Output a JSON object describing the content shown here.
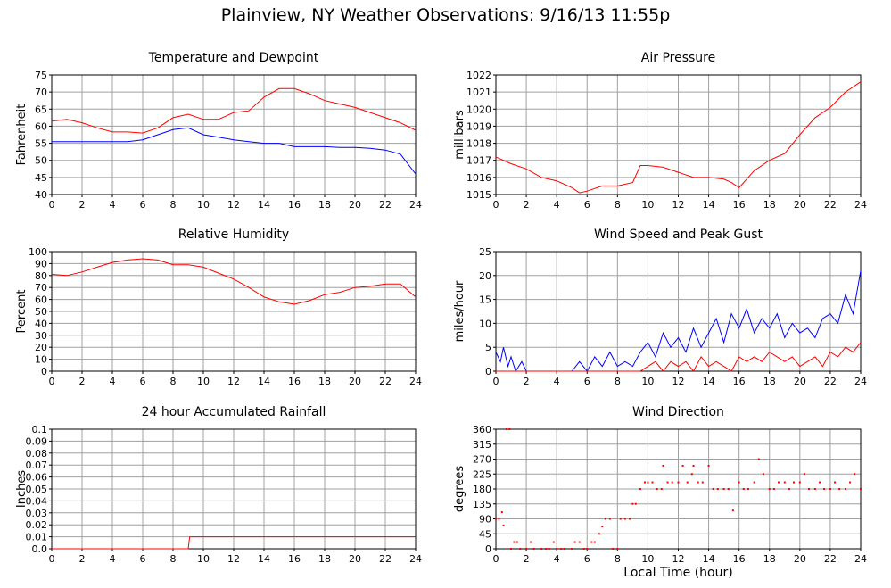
{
  "title": "Plainview, NY Weather Observations: 9/16/13 11:55p",
  "xlabel": "Local Time (hour)",
  "colors": {
    "red": "#ff0000",
    "blue": "#0000ff",
    "grid": "#a0a0a0"
  },
  "chart_data": [
    {
      "type": "line",
      "title": "Temperature and Dewpoint",
      "ylabel": "Fahrenheit",
      "xlim": [
        0,
        24
      ],
      "ylim": [
        40,
        75
      ],
      "xticks": [
        0,
        2,
        4,
        6,
        8,
        10,
        12,
        14,
        16,
        18,
        20,
        22,
        24
      ],
      "yticks": [
        40,
        45,
        50,
        55,
        60,
        65,
        70,
        75
      ],
      "series": [
        {
          "color": "#ff0000",
          "x": [
            0,
            1,
            2,
            3,
            4,
            5,
            6,
            7,
            8,
            9,
            10,
            11,
            12,
            13,
            14,
            15,
            16,
            17,
            18,
            19,
            20,
            21,
            22,
            23,
            24
          ],
          "y": [
            61.5,
            62,
            61,
            59.5,
            58.3,
            58.3,
            58,
            59.5,
            62.5,
            63.5,
            62,
            62,
            64,
            64.5,
            68.5,
            71,
            71,
            69.5,
            67.5,
            66.5,
            65.5,
            64,
            62.5,
            61,
            58.8
          ]
        },
        {
          "color": "#0000ff",
          "x": [
            0,
            1,
            2,
            3,
            4,
            5,
            6,
            7,
            8,
            9,
            10,
            11,
            12,
            13,
            14,
            15,
            16,
            17,
            18,
            19,
            20,
            21,
            22,
            23,
            24
          ],
          "y": [
            55.5,
            55.5,
            55.5,
            55.5,
            55.5,
            55.5,
            56,
            57.5,
            59,
            59.5,
            57.5,
            56.8,
            56,
            55.5,
            55,
            55,
            54,
            54,
            54,
            53.8,
            53.8,
            53.5,
            53,
            51.8,
            46
          ]
        }
      ]
    },
    {
      "type": "line",
      "title": "Air Pressure",
      "ylabel": "millibars",
      "xlim": [
        0,
        24
      ],
      "ylim": [
        1015,
        1022
      ],
      "xticks": [
        0,
        2,
        4,
        6,
        8,
        10,
        12,
        14,
        16,
        18,
        20,
        22,
        24
      ],
      "yticks": [
        1015,
        1016,
        1017,
        1018,
        1019,
        1020,
        1021,
        1022
      ],
      "series": [
        {
          "color": "#ff0000",
          "x": [
            0,
            1,
            2,
            3,
            4,
            5,
            5.5,
            6,
            7,
            8,
            9,
            9.5,
            10,
            11,
            12,
            13,
            14,
            15,
            15.5,
            16,
            17,
            18,
            19,
            20,
            21,
            22,
            23,
            24
          ],
          "y": [
            1017.2,
            1016.8,
            1016.5,
            1016,
            1015.8,
            1015.4,
            1015.1,
            1015.2,
            1015.5,
            1015.5,
            1015.7,
            1016.7,
            1016.7,
            1016.6,
            1016.3,
            1016,
            1016,
            1015.9,
            1015.7,
            1015.4,
            1016.4,
            1017,
            1017.4,
            1018.5,
            1019.5,
            1020.1,
            1021,
            1021.6
          ]
        }
      ]
    },
    {
      "type": "line",
      "title": "Relative Humidity",
      "ylabel": "Percent",
      "xlim": [
        0,
        24
      ],
      "ylim": [
        0,
        100
      ],
      "xticks": [
        0,
        2,
        4,
        6,
        8,
        10,
        12,
        14,
        16,
        18,
        20,
        22,
        24
      ],
      "yticks": [
        0,
        10,
        20,
        30,
        40,
        50,
        60,
        70,
        80,
        90,
        100
      ],
      "series": [
        {
          "color": "#ff0000",
          "x": [
            0,
            1,
            2,
            3,
            4,
            5,
            6,
            7,
            8,
            9,
            10,
            11,
            12,
            13,
            14,
            15,
            16,
            17,
            18,
            19,
            20,
            21,
            22,
            23,
            24
          ],
          "y": [
            81,
            80,
            83,
            87,
            91,
            93,
            94,
            93,
            89,
            89,
            87,
            82,
            77,
            70,
            62,
            58,
            56,
            59,
            64,
            66,
            70,
            71,
            73,
            73,
            62
          ]
        }
      ]
    },
    {
      "type": "line",
      "title": "Wind Speed and Peak Gust",
      "ylabel": "miles/hour",
      "xlim": [
        0,
        24
      ],
      "ylim": [
        0,
        25
      ],
      "xticks": [
        0,
        2,
        4,
        6,
        8,
        10,
        12,
        14,
        16,
        18,
        20,
        22,
        24
      ],
      "yticks": [
        0,
        5,
        10,
        15,
        20,
        25
      ],
      "series": [
        {
          "color": "#0000ff",
          "x": [
            0,
            0.3,
            0.5,
            0.8,
            1,
            1.3,
            1.7,
            2,
            3,
            4,
            5,
            5.5,
            6,
            6.5,
            7,
            7.5,
            8,
            8.5,
            9,
            9.5,
            10,
            10.5,
            11,
            11.5,
            12,
            12.5,
            13,
            13.5,
            14,
            14.5,
            15,
            15.5,
            16,
            16.5,
            17,
            17.5,
            18,
            18.5,
            19,
            19.5,
            20,
            20.5,
            21,
            21.5,
            22,
            22.5,
            23,
            23.5,
            24
          ],
          "y": [
            4,
            2,
            5,
            1,
            3,
            0,
            2,
            0,
            0,
            0,
            0,
            2,
            0,
            3,
            1,
            4,
            1,
            2,
            1,
            4,
            6,
            3,
            8,
            5,
            7,
            4,
            9,
            5,
            8,
            11,
            6,
            12,
            9,
            13,
            8,
            11,
            9,
            12,
            7,
            10,
            8,
            9,
            7,
            11,
            12,
            10,
            16,
            12,
            21
          ]
        },
        {
          "color": "#ff0000",
          "x": [
            0,
            9,
            9.5,
            10,
            10.5,
            11,
            11.5,
            12,
            12.5,
            13,
            13.5,
            14,
            14.5,
            15,
            15.5,
            16,
            16.5,
            17,
            17.5,
            18,
            18.5,
            19,
            19.5,
            20,
            20.5,
            21,
            21.5,
            22,
            22.5,
            23,
            23.5,
            24
          ],
          "y": [
            0,
            0,
            0,
            1,
            2,
            0,
            2,
            1,
            2,
            0,
            3,
            1,
            2,
            1,
            0,
            3,
            2,
            3,
            2,
            4,
            3,
            2,
            3,
            1,
            2,
            3,
            1,
            4,
            3,
            5,
            4,
            6
          ]
        }
      ]
    },
    {
      "type": "line",
      "title": "24 hour Accumulated Rainfall",
      "ylabel": "Inches",
      "xlim": [
        0,
        24
      ],
      "ylim": [
        0,
        0.1
      ],
      "xticks": [
        0,
        2,
        4,
        6,
        8,
        10,
        12,
        14,
        16,
        18,
        20,
        22,
        24
      ],
      "yticks": [
        0.0,
        0.01,
        0.02,
        0.03,
        0.04,
        0.05,
        0.06,
        0.07,
        0.08,
        0.09,
        0.1
      ],
      "ytick_labels": [
        "0.0",
        "0.01",
        "0.02",
        "0.03",
        "0.04",
        "0.05",
        "0.06",
        "0.07",
        "0.08",
        "0.09",
        "0.1"
      ],
      "series": [
        {
          "color": "#ff0000",
          "x": [
            0,
            9,
            9.1,
            24
          ],
          "y": [
            0,
            0,
            0.01,
            0.01
          ]
        }
      ]
    },
    {
      "type": "scatter",
      "title": "Wind Direction",
      "ylabel": "degrees",
      "xlim": [
        0,
        24
      ],
      "ylim": [
        0,
        360
      ],
      "xticks": [
        0,
        2,
        4,
        6,
        8,
        10,
        12,
        14,
        16,
        18,
        20,
        22,
        24
      ],
      "yticks": [
        0,
        45,
        90,
        135,
        180,
        225,
        270,
        315,
        360
      ],
      "series": [
        {
          "color": "#ff0000",
          "x": [
            0,
            0.2,
            0.4,
            0.5,
            0.7,
            0.9,
            1,
            1.2,
            1.4,
            1.6,
            2,
            2.3,
            2.5,
            3,
            3.3,
            3.5,
            3.8,
            4,
            4.3,
            4.5,
            5,
            5.2,
            5.5,
            5.8,
            6,
            6.3,
            6.5,
            6.8,
            7,
            7.2,
            7.5,
            7.7,
            8,
            8.2,
            8.5,
            8.8,
            9,
            9.2,
            9.5,
            9.8,
            10,
            10.3,
            10.6,
            10.9,
            11,
            11.3,
            11.6,
            12,
            12.3,
            12.6,
            12.9,
            13,
            13.3,
            13.6,
            14,
            14.3,
            14.6,
            15,
            15.3,
            15.6,
            16,
            16.3,
            16.6,
            17,
            17.3,
            17.6,
            18,
            18.3,
            18.6,
            19,
            19.3,
            19.6,
            20,
            20.3,
            20.6,
            21,
            21.3,
            21.6,
            22,
            22.3,
            22.6,
            23,
            23.3,
            23.6,
            24
          ],
          "y": [
            90,
            90,
            110,
            70,
            360,
            360,
            0,
            20,
            20,
            0,
            0,
            20,
            0,
            0,
            0,
            0,
            20,
            0,
            0,
            0,
            0,
            20,
            20,
            0,
            0,
            20,
            20,
            45,
            67,
            90,
            90,
            0,
            0,
            90,
            90,
            90,
            135,
            135,
            180,
            200,
            200,
            200,
            180,
            180,
            250,
            200,
            200,
            200,
            250,
            200,
            225,
            250,
            200,
            200,
            250,
            180,
            180,
            180,
            180,
            115,
            200,
            180,
            180,
            200,
            270,
            225,
            180,
            180,
            200,
            200,
            180,
            200,
            200,
            225,
            180,
            180,
            200,
            180,
            180,
            200,
            180,
            180,
            200,
            225,
            180
          ]
        }
      ]
    }
  ]
}
